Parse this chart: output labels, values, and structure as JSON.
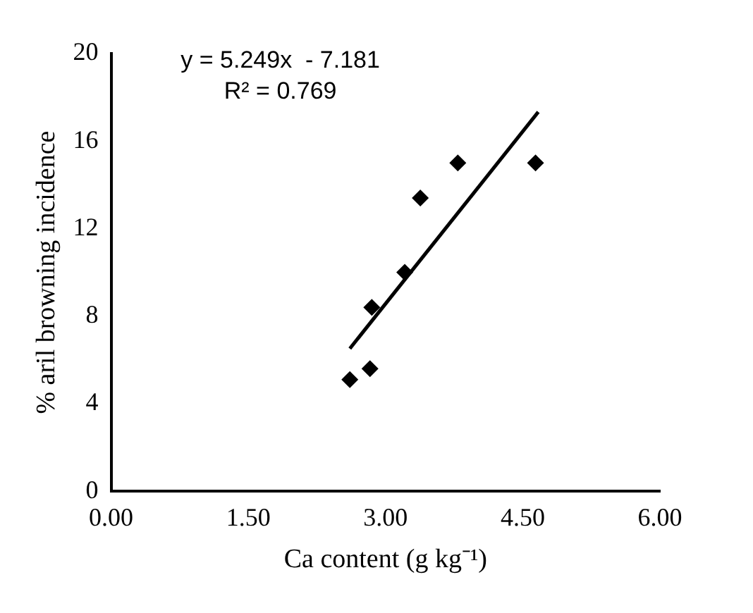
{
  "chart_data": {
    "type": "scatter",
    "xlabel": "Ca content (g kg⁻¹)",
    "ylabel": "% aril browning incidence",
    "annotations": [
      "y = 5.249x  - 7.181",
      "R² = 0.769"
    ],
    "series": [
      {
        "color": "#000000",
        "marker": "diamond",
        "x": [
          2.61,
          2.83,
          2.85,
          3.21,
          3.38,
          3.79,
          4.64
        ],
        "values": [
          5.1,
          5.6,
          8.4,
          10.0,
          13.4,
          15.0,
          15.0
        ]
      },
      {
        "type": "line",
        "color": "#000000",
        "marker": "none",
        "line_style": "solid",
        "x": [
          2.61,
          4.67
        ],
        "values": [
          6.52,
          17.33
        ]
      }
    ],
    "xlim": [
      0,
      6
    ],
    "xticks": [
      {
        "value": 0,
        "label": "0.00"
      },
      {
        "value": 1.5,
        "label": "1.50"
      },
      {
        "value": 3,
        "label": "3.00"
      },
      {
        "value": 4.5,
        "label": "4.50"
      },
      {
        "value": 6,
        "label": "6.00"
      }
    ],
    "ylim": [
      0,
      20
    ],
    "yticks": [
      0,
      4,
      8,
      12,
      16,
      20
    ],
    "grid": false,
    "legend": false
  }
}
